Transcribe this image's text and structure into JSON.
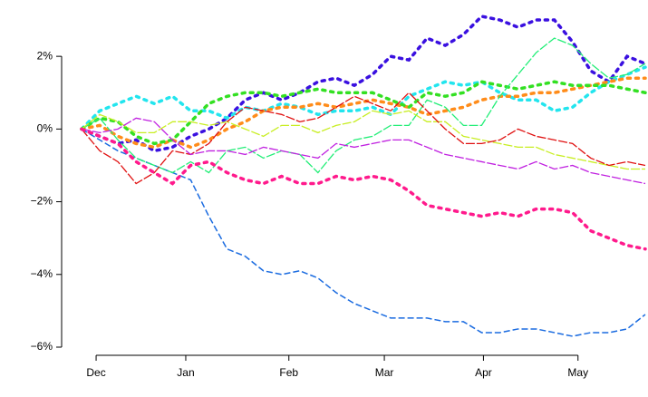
{
  "chart_data": {
    "type": "line",
    "x": [
      0,
      1,
      2,
      3,
      4,
      5,
      6,
      7,
      8,
      9,
      10,
      11,
      12,
      13,
      14,
      15,
      16,
      17,
      18,
      19,
      20,
      21,
      22,
      23,
      24,
      25,
      26,
      27,
      28,
      29,
      30,
      31
    ],
    "xlim": [
      0,
      31
    ],
    "xticks": [
      {
        "value": 0.8,
        "label": "Dec"
      },
      {
        "value": 5.73,
        "label": "Jan"
      },
      {
        "value": 11.4,
        "label": "Feb"
      },
      {
        "value": 16.65,
        "label": "Mar"
      },
      {
        "value": 22.1,
        "label": "Apr"
      },
      {
        "value": 27.3,
        "label": "May"
      }
    ],
    "ylim": [
      -6.05,
      3.3
    ],
    "yticks": [
      {
        "value": 2,
        "label": "2%"
      },
      {
        "value": 0,
        "label": "0%"
      },
      {
        "value": -2,
        "label": "−2%"
      },
      {
        "value": -4,
        "label": "−4%"
      },
      {
        "value": -6,
        "label": "−6%"
      }
    ],
    "series": [
      {
        "color": "#1a6be0",
        "style": "dashed",
        "values": [
          0,
          -0.3,
          -0.6,
          -0.8,
          -1.0,
          -1.2,
          -1.4,
          -2.4,
          -3.3,
          -3.5,
          -3.9,
          -4.0,
          -3.9,
          -4.1,
          -4.5,
          -4.8,
          -5.0,
          -5.2,
          -5.2,
          -5.2,
          -5.3,
          -5.3,
          -5.6,
          -5.6,
          -5.5,
          -5.5,
          -5.6,
          -5.7,
          -5.6,
          -5.6,
          -5.5,
          -5.1
        ]
      },
      {
        "color": "#3a10e0",
        "style": "dotted",
        "values": [
          0,
          -0.2,
          -0.4,
          -0.3,
          -0.6,
          -0.5,
          -0.2,
          0.0,
          0.3,
          0.8,
          1.0,
          0.8,
          1.0,
          1.3,
          1.4,
          1.2,
          1.5,
          2.0,
          1.9,
          2.5,
          2.3,
          2.6,
          3.1,
          3.0,
          2.8,
          3.0,
          3.0,
          2.4,
          1.6,
          1.3,
          2.0,
          1.8
        ]
      },
      {
        "color": "#22e5ee",
        "style": "dotted",
        "values": [
          0,
          0.5,
          0.7,
          0.9,
          0.7,
          0.9,
          0.5,
          0.5,
          0.3,
          0.6,
          0.5,
          0.7,
          0.6,
          0.4,
          0.5,
          0.5,
          0.6,
          0.4,
          0.9,
          1.1,
          1.3,
          1.2,
          1.3,
          1.0,
          0.8,
          0.8,
          0.5,
          0.6,
          1.0,
          1.3,
          1.5,
          1.7
        ]
      },
      {
        "color": "#ff8c1a",
        "style": "dotted",
        "values": [
          0,
          0.1,
          -0.2,
          -0.4,
          -0.5,
          -0.3,
          -0.5,
          -0.3,
          0.0,
          0.2,
          0.5,
          0.6,
          0.6,
          0.7,
          0.6,
          0.7,
          0.8,
          0.7,
          0.6,
          0.4,
          0.5,
          0.6,
          0.8,
          0.9,
          0.9,
          1.0,
          1.0,
          1.1,
          1.2,
          1.3,
          1.4,
          1.4
        ]
      },
      {
        "color": "#33e022",
        "style": "dotted",
        "values": [
          0,
          0.3,
          0.2,
          -0.2,
          -0.4,
          -0.3,
          0.2,
          0.7,
          0.9,
          1.0,
          1.0,
          0.9,
          1.0,
          1.1,
          1.0,
          1.0,
          1.0,
          0.8,
          0.6,
          1.0,
          0.9,
          1.0,
          1.3,
          1.2,
          1.1,
          1.2,
          1.3,
          1.2,
          1.2,
          1.2,
          1.1,
          1.0
        ]
      },
      {
        "color": "#22ee77",
        "style": "thin",
        "values": [
          0,
          0.3,
          -0.3,
          -0.8,
          -1.0,
          -1.2,
          -0.9,
          -1.2,
          -0.6,
          -0.5,
          -0.8,
          -0.6,
          -0.7,
          -1.2,
          -0.6,
          -0.3,
          -0.2,
          0.1,
          0.1,
          0.8,
          0.6,
          0.1,
          0.1,
          0.9,
          1.5,
          2.1,
          2.5,
          2.3,
          1.8,
          1.4,
          1.5,
          1.8
        ]
      },
      {
        "color": "#c8ee22",
        "style": "thin",
        "values": [
          0,
          0.4,
          0.2,
          -0.1,
          -0.1,
          0.2,
          0.2,
          0.1,
          0.2,
          0.0,
          -0.2,
          0.1,
          0.1,
          -0.1,
          0.1,
          0.2,
          0.5,
          0.4,
          0.5,
          0.2,
          0.2,
          -0.2,
          -0.3,
          -0.4,
          -0.5,
          -0.5,
          -0.7,
          -0.8,
          -0.9,
          -1.0,
          -1.1,
          -1.1
        ]
      },
      {
        "color": "#e01010",
        "style": "thin",
        "values": [
          0,
          -0.6,
          -0.9,
          -1.5,
          -1.2,
          -0.6,
          -0.7,
          -0.4,
          0.2,
          0.6,
          0.5,
          0.4,
          0.2,
          0.3,
          0.6,
          0.9,
          0.7,
          0.5,
          1.0,
          0.5,
          0.0,
          -0.4,
          -0.4,
          -0.3,
          0.0,
          -0.2,
          -0.3,
          -0.4,
          -0.8,
          -1.0,
          -0.9,
          -1.0
        ]
      },
      {
        "color": "#c020e0",
        "style": "thin",
        "values": [
          0,
          -0.1,
          0.0,
          0.3,
          0.2,
          -0.3,
          -0.7,
          -0.6,
          -0.6,
          -0.7,
          -0.5,
          -0.6,
          -0.7,
          -0.8,
          -0.4,
          -0.5,
          -0.4,
          -0.3,
          -0.3,
          -0.5,
          -0.7,
          -0.8,
          -0.9,
          -1.0,
          -1.1,
          -0.9,
          -1.1,
          -1.0,
          -1.2,
          -1.3,
          -1.4,
          -1.5
        ]
      },
      {
        "color": "#ff1a8c",
        "style": "dotted",
        "values": [
          0,
          -0.2,
          -0.4,
          -0.9,
          -1.2,
          -1.5,
          -1.0,
          -0.9,
          -1.2,
          -1.4,
          -1.5,
          -1.3,
          -1.5,
          -1.5,
          -1.3,
          -1.4,
          -1.3,
          -1.4,
          -1.7,
          -2.1,
          -2.2,
          -2.3,
          -2.4,
          -2.3,
          -2.4,
          -2.2,
          -2.2,
          -2.3,
          -2.8,
          -3.0,
          -3.2,
          -3.3
        ]
      }
    ]
  }
}
